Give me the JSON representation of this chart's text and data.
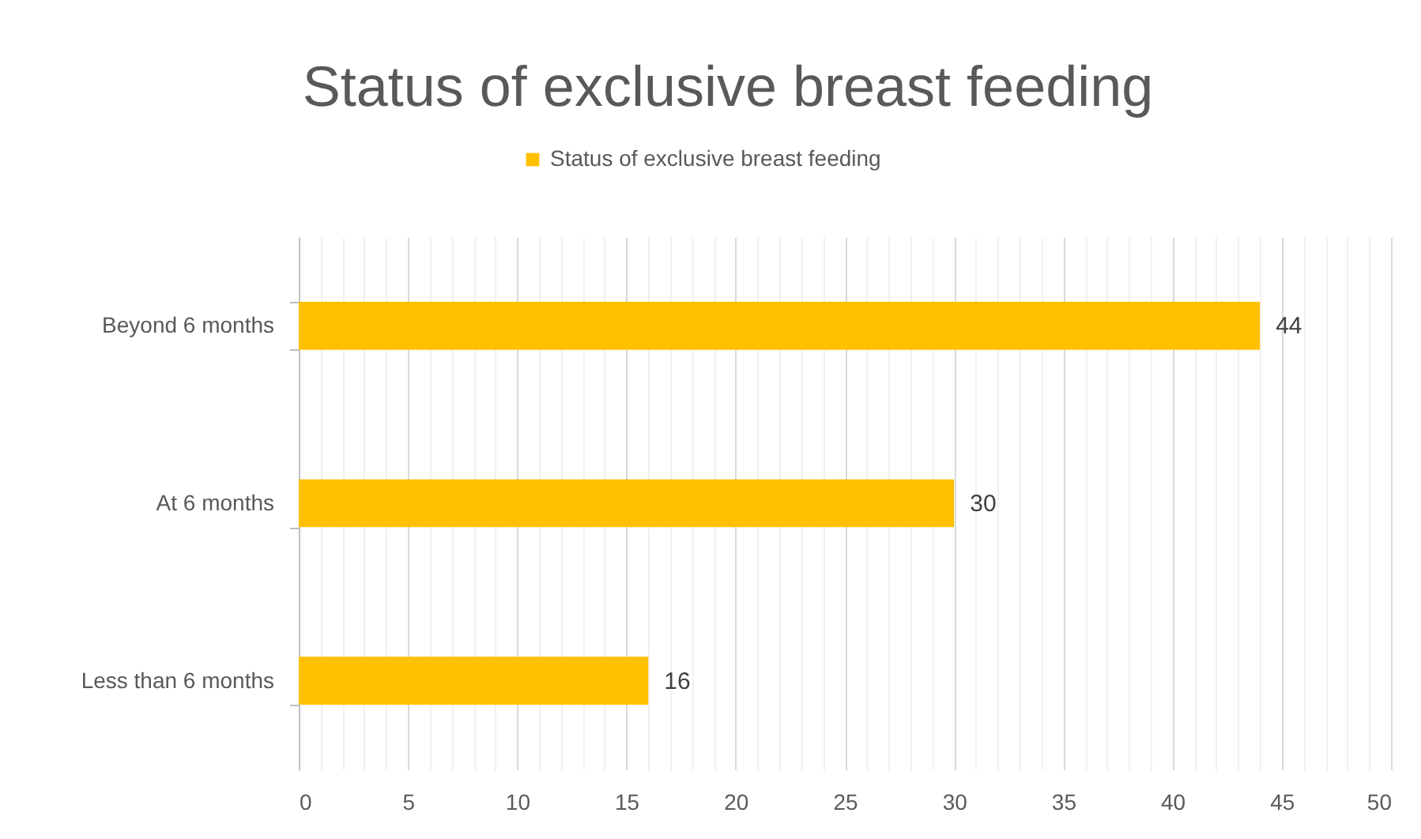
{
  "chart_data": {
    "type": "bar",
    "orientation": "horizontal",
    "title": "Status of exclusive breast feeding",
    "categories": [
      "Beyond 6 months",
      "At 6 months",
      "Less than 6 months"
    ],
    "series": [
      {
        "name": "Status of exclusive breast feeding",
        "color": "#ffc000",
        "values": [
          44,
          30,
          16
        ]
      }
    ],
    "xlim": [
      0,
      50
    ],
    "xticks": [
      0,
      {
        "value": 1,
        "label": null
      },
      {
        "value": 2,
        "label": null
      },
      {
        "value": 3,
        "label": null
      },
      {
        "value": 4,
        "label": null
      },
      5,
      {
        "value": 6,
        "label": null
      },
      {
        "value": 7,
        "label": null
      },
      {
        "value": 8,
        "label": null
      },
      {
        "value": 9,
        "label": null
      },
      10,
      {
        "value": 11,
        "label": null
      },
      {
        "value": 12,
        "label": null
      },
      {
        "value": 13,
        "label": null
      },
      {
        "value": 14,
        "label": null
      },
      15,
      {
        "value": 16,
        "label": null
      },
      {
        "value": 17,
        "label": null
      },
      {
        "value": 18,
        "label": null
      },
      {
        "value": 19,
        "label": null
      },
      20,
      {
        "value": 21,
        "label": null
      },
      {
        "value": 22,
        "label": null
      },
      {
        "value": 23,
        "label": null
      },
      {
        "value": 24,
        "label": null
      },
      25,
      {
        "value": 26,
        "label": null
      },
      {
        "value": 27,
        "label": null
      },
      {
        "value": 28,
        "label": null
      },
      {
        "value": 29,
        "label": null
      },
      30,
      {
        "value": 31,
        "label": null
      },
      {
        "value": 32,
        "label": null
      },
      {
        "value": 33,
        "label": null
      },
      {
        "value": 34,
        "label": null
      },
      35,
      {
        "value": 36,
        "label": null
      },
      {
        "value": 37,
        "label": null
      },
      {
        "value": 38,
        "label": null
      },
      {
        "value": 39,
        "label": null
      },
      40,
      {
        "value": 41,
        "label": null
      },
      {
        "value": 42,
        "label": null
      },
      {
        "value": 43,
        "label": null
      },
      {
        "value": 44,
        "label": null
      },
      45,
      {
        "value": 46,
        "label": null
      },
      {
        "value": 47,
        "label": null
      },
      {
        "value": 48,
        "label": null
      },
      {
        "value": 49,
        "label": null
      },
      50
    ],
    "grid": "x",
    "legend": "top",
    "data_labels": true
  }
}
